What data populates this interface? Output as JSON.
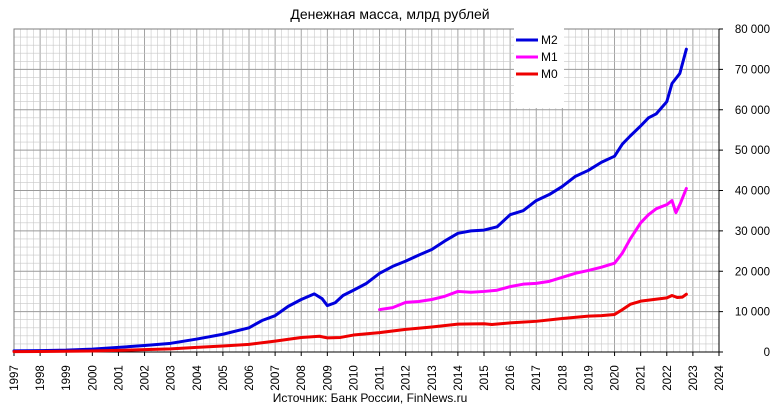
{
  "chart_data": {
    "type": "line",
    "title": "Денежная масса, млрд рублей",
    "source": "Источник: Банк России, FinNews.ru",
    "xlabel": "",
    "ylabel": "",
    "xlim": [
      1997,
      2024
    ],
    "ylim": [
      0,
      80000
    ],
    "grid": true,
    "legend_position": "top-right",
    "x_ticks": [
      "1997",
      "1998",
      "1999",
      "2000",
      "2001",
      "2002",
      "2003",
      "2004",
      "2005",
      "2006",
      "2007",
      "2008",
      "2009",
      "2010",
      "2011",
      "2012",
      "2013",
      "2014",
      "2015",
      "2016",
      "2017",
      "2018",
      "2019",
      "2020",
      "2021",
      "2022",
      "2023",
      "2024"
    ],
    "y_ticks": [
      "0",
      "10 000",
      "20 000",
      "30 000",
      "40 000",
      "50 000",
      "60 000",
      "70 000",
      "80 000"
    ],
    "series": [
      {
        "name": "M2",
        "color": "#0000dd",
        "points": [
          [
            1997,
            290
          ],
          [
            1998,
            350
          ],
          [
            1999,
            450
          ],
          [
            2000,
            700
          ],
          [
            2001,
            1150
          ],
          [
            2002,
            1600
          ],
          [
            2003,
            2150
          ],
          [
            2004,
            3200
          ],
          [
            2005,
            4400
          ],
          [
            2006,
            6000
          ],
          [
            2006.5,
            7800
          ],
          [
            2007,
            9000
          ],
          [
            2007.5,
            11300
          ],
          [
            2008,
            13000
          ],
          [
            2008.5,
            14400
          ],
          [
            2008.8,
            13200
          ],
          [
            2009,
            11500
          ],
          [
            2009.3,
            12200
          ],
          [
            2009.6,
            14000
          ],
          [
            2010,
            15300
          ],
          [
            2010.5,
            17000
          ],
          [
            2011,
            19500
          ],
          [
            2011.5,
            21200
          ],
          [
            2012,
            22500
          ],
          [
            2012.5,
            24000
          ],
          [
            2013,
            25400
          ],
          [
            2013.5,
            27500
          ],
          [
            2014,
            29400
          ],
          [
            2014.5,
            30000
          ],
          [
            2015,
            30200
          ],
          [
            2015.5,
            31000
          ],
          [
            2016,
            34000
          ],
          [
            2016.5,
            35000
          ],
          [
            2017,
            37500
          ],
          [
            2017.5,
            39000
          ],
          [
            2018,
            41000
          ],
          [
            2018.5,
            43500
          ],
          [
            2019,
            45000
          ],
          [
            2019.5,
            47000
          ],
          [
            2020,
            48500
          ],
          [
            2020.3,
            51500
          ],
          [
            2020.6,
            53500
          ],
          [
            2021,
            56000
          ],
          [
            2021.3,
            58000
          ],
          [
            2021.6,
            59000
          ],
          [
            2022,
            62000
          ],
          [
            2022.2,
            66500
          ],
          [
            2022.5,
            69000
          ],
          [
            2022.75,
            75000
          ]
        ]
      },
      {
        "name": "M1",
        "color": "#ff00ff",
        "points": [
          [
            2011,
            10500
          ],
          [
            2011.5,
            11000
          ],
          [
            2012,
            12300
          ],
          [
            2012.5,
            12500
          ],
          [
            2013,
            13000
          ],
          [
            2013.5,
            13800
          ],
          [
            2014,
            15000
          ],
          [
            2014.5,
            14800
          ],
          [
            2015,
            15000
          ],
          [
            2015.5,
            15300
          ],
          [
            2016,
            16200
          ],
          [
            2016.5,
            16800
          ],
          [
            2017,
            17000
          ],
          [
            2017.5,
            17500
          ],
          [
            2018,
            18500
          ],
          [
            2018.5,
            19500
          ],
          [
            2019,
            20200
          ],
          [
            2019.5,
            21000
          ],
          [
            2020,
            22000
          ],
          [
            2020.3,
            24500
          ],
          [
            2020.6,
            28000
          ],
          [
            2021,
            32000
          ],
          [
            2021.3,
            34000
          ],
          [
            2021.6,
            35500
          ],
          [
            2022,
            36500
          ],
          [
            2022.2,
            37500
          ],
          [
            2022.35,
            34500
          ],
          [
            2022.5,
            36500
          ],
          [
            2022.75,
            40500
          ]
        ]
      },
      {
        "name": "M0",
        "color": "#ee0000",
        "points": [
          [
            1997,
            100
          ],
          [
            1998,
            130
          ],
          [
            1999,
            190
          ],
          [
            2000,
            260
          ],
          [
            2001,
            400
          ],
          [
            2002,
            580
          ],
          [
            2003,
            760
          ],
          [
            2004,
            1150
          ],
          [
            2005,
            1500
          ],
          [
            2006,
            1900
          ],
          [
            2007,
            2700
          ],
          [
            2008,
            3600
          ],
          [
            2008.7,
            3900
          ],
          [
            2009,
            3500
          ],
          [
            2009.5,
            3600
          ],
          [
            2010,
            4200
          ],
          [
            2011,
            4800
          ],
          [
            2012,
            5600
          ],
          [
            2013,
            6200
          ],
          [
            2014,
            6900
          ],
          [
            2015,
            7000
          ],
          [
            2015.3,
            6800
          ],
          [
            2016,
            7200
          ],
          [
            2017,
            7600
          ],
          [
            2018,
            8300
          ],
          [
            2019,
            8900
          ],
          [
            2019.5,
            9000
          ],
          [
            2020,
            9300
          ],
          [
            2020.3,
            10500
          ],
          [
            2020.6,
            11800
          ],
          [
            2021,
            12600
          ],
          [
            2021.5,
            13000
          ],
          [
            2022,
            13400
          ],
          [
            2022.2,
            14000
          ],
          [
            2022.4,
            13500
          ],
          [
            2022.6,
            13600
          ],
          [
            2022.75,
            14300
          ]
        ]
      }
    ]
  }
}
